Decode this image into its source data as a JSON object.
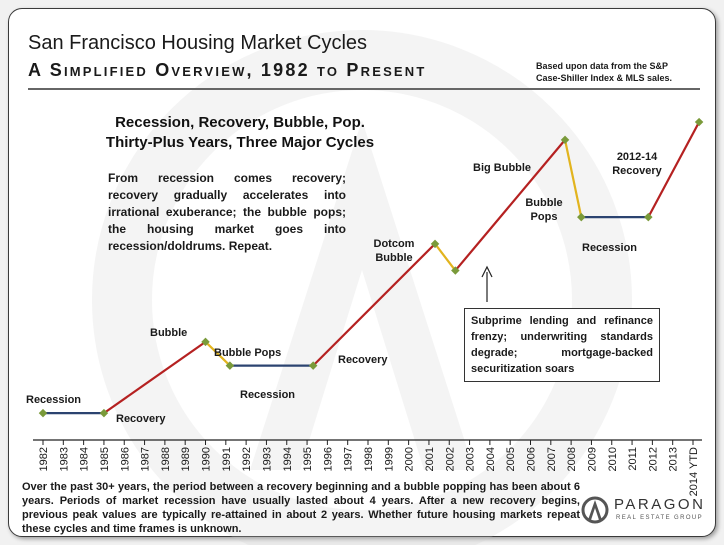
{
  "header": {
    "title": "San Francisco Housing Market Cycles",
    "subtitle": "A Simplified Overview, 1982 to Present",
    "source_note_line1": "Based upon data from the S&P",
    "source_note_line2": "Case-Shiller Index & MLS sales."
  },
  "headline": {
    "line1": "Recession, Recovery, Bubble, Pop.",
    "line2": "Thirty-Plus Years, Three Major Cycles"
  },
  "description": "From recession comes recovery; recovery gradually accelerates into irrational exuberance; the bubble pops; the housing market goes into recession/doldrums. Repeat.",
  "callout": "Subprime lending and refinance frenzy; underwriting standards degrade; mortgage-backed securitization soars",
  "footer": "Over the past 30+ years, the period between a recovery beginning and a bubble popping has been about 6 years. Periods of market recession have usually lasted about 4 years. After a new recovery begins, previous peak values are typically re-attained in about 2 years. Whether future housing markets repeat these cycles and time frames is unknown.",
  "logo": {
    "name": "PARAGON",
    "tagline": "REAL ESTATE GROUP"
  },
  "colors": {
    "recovery": "#b52121",
    "pop": "#e2b41e",
    "recession": "#2b4370",
    "marker": "#7a9a3a"
  },
  "chart_data": {
    "type": "line",
    "x_ticks": [
      "1982",
      "1983",
      "1984",
      "1985",
      "1986",
      "1987",
      "1988",
      "1989",
      "1990",
      "1991",
      "1992",
      "1993",
      "1994",
      "1995",
      "1996",
      "1997",
      "1998",
      "1999",
      "2000",
      "2001",
      "2002",
      "2003",
      "2004",
      "2005",
      "2006",
      "2007",
      "2008",
      "2009",
      "2010",
      "2011",
      "2012",
      "2013",
      "2014 YTD"
    ],
    "x_range": [
      1982,
      2014
    ],
    "y_range": [
      0,
      100
    ],
    "points": [
      {
        "x": 1982,
        "y": 4
      },
      {
        "x": 1985,
        "y": 4
      },
      {
        "x": 1990,
        "y": 28
      },
      {
        "x": 1991.2,
        "y": 20
      },
      {
        "x": 1995.3,
        "y": 20
      },
      {
        "x": 2001.3,
        "y": 61
      },
      {
        "x": 2002.3,
        "y": 52
      },
      {
        "x": 2007.7,
        "y": 96
      },
      {
        "x": 2008.5,
        "y": 70
      },
      {
        "x": 2011.8,
        "y": 70
      },
      {
        "x": 2014.3,
        "y": 102
      }
    ],
    "segments": [
      {
        "from": 0,
        "to": 1,
        "phase": "recession"
      },
      {
        "from": 1,
        "to": 2,
        "phase": "recovery"
      },
      {
        "from": 2,
        "to": 3,
        "phase": "pop"
      },
      {
        "from": 3,
        "to": 4,
        "phase": "recession"
      },
      {
        "from": 4,
        "to": 5,
        "phase": "recovery"
      },
      {
        "from": 5,
        "to": 6,
        "phase": "pop"
      },
      {
        "from": 6,
        "to": 7,
        "phase": "recovery"
      },
      {
        "from": 7,
        "to": 8,
        "phase": "pop"
      },
      {
        "from": 8,
        "to": 9,
        "phase": "recession"
      },
      {
        "from": 9,
        "to": 10,
        "phase": "recovery"
      }
    ],
    "annotations": [
      {
        "key": "recession-1982",
        "lines": [
          "Recession"
        ]
      },
      {
        "key": "recovery-1985",
        "lines": [
          "Recovery"
        ]
      },
      {
        "key": "bubble-1989",
        "lines": [
          "Bubble"
        ]
      },
      {
        "key": "bubble-pops-1990",
        "lines": [
          "Bubble Pops"
        ]
      },
      {
        "key": "recession-1991",
        "lines": [
          "Recession"
        ]
      },
      {
        "key": "recovery-1996",
        "lines": [
          "Recovery"
        ]
      },
      {
        "key": "dotcom-bubble",
        "lines": [
          "Dotcom",
          "Bubble"
        ]
      },
      {
        "key": "big-bubble",
        "lines": [
          "Big Bubble"
        ]
      },
      {
        "key": "bubble-pops-2007",
        "lines": [
          "Bubble",
          "Pops"
        ]
      },
      {
        "key": "recession-2008",
        "lines": [
          "Recession"
        ]
      },
      {
        "key": "recovery-2012",
        "lines": [
          "2012-14",
          "Recovery"
        ]
      }
    ]
  }
}
